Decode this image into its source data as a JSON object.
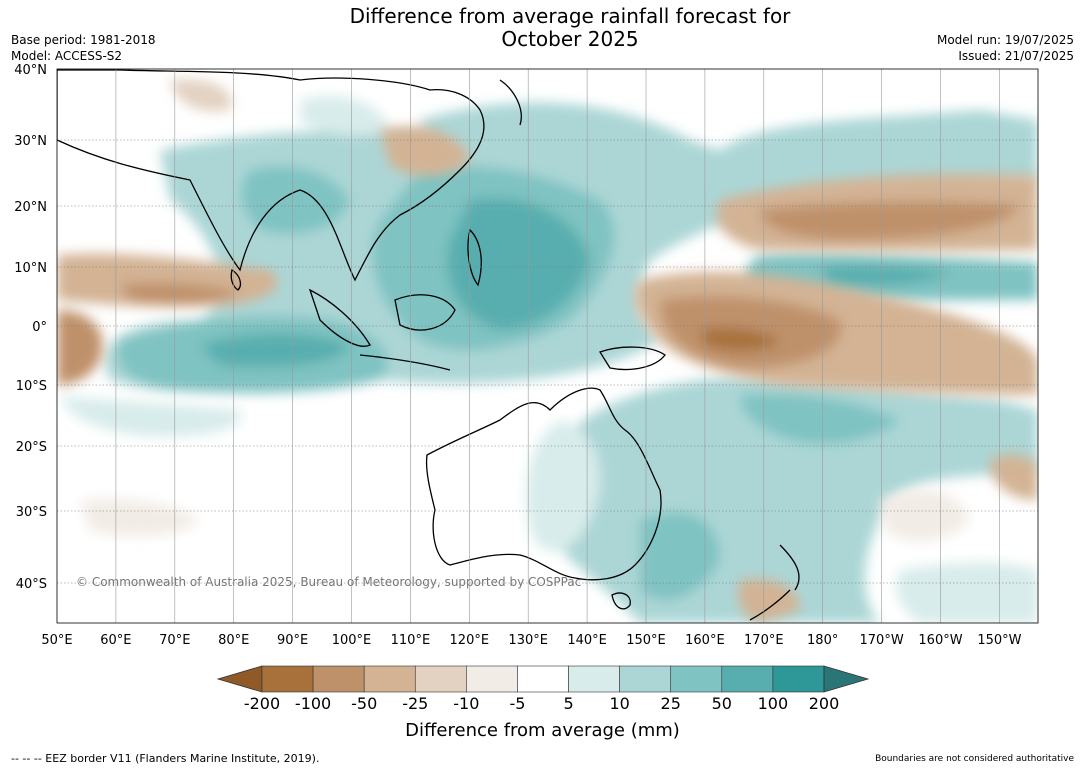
{
  "title": {
    "line1": "Difference from average rainfall forecast for",
    "line2": "October 2025"
  },
  "meta": {
    "base_period": "Base period: 1981-2018",
    "model": "Model: ACCESS-S2",
    "model_run": "Model run: 19/07/2025",
    "issued": "Issued: 21/07/2025"
  },
  "copyright": "© Commonwealth of Australia 2025, Bureau of Meteorology, supported by COSPPac",
  "longitude_labels": [
    "50°E",
    "60°E",
    "70°E",
    "80°E",
    "90°E",
    "100°E",
    "110°E",
    "120°E",
    "130°E",
    "140°E",
    "150°E",
    "160°E",
    "170°E",
    "180°",
    "170°W",
    "160°W",
    "150°W"
  ],
  "latitude_labels": [
    "40°N",
    "30°N",
    "20°N",
    "10°N",
    "0°",
    "10°S",
    "20°S",
    "30°S",
    "40°S"
  ],
  "colorbar": {
    "ticks": [
      "-200",
      "-100",
      "-50",
      "-25",
      "-10",
      "-5",
      "5",
      "10",
      "25",
      "50",
      "100",
      "200"
    ],
    "colors": [
      "#8f5a28",
      "#a8713b",
      "#bf916a",
      "#d3b394",
      "#e3d2c2",
      "#f2ece6",
      "#ffffff",
      "#d8eceb",
      "#acd6d6",
      "#7fc3c2",
      "#58aeae",
      "#2e9797",
      "#2a7676"
    ],
    "label": "Difference from average (mm)"
  },
  "footer": {
    "eez": "--  --  -- EEZ border V11 (Flanders Marine Institute, 2019).",
    "boundaries": "Boundaries are not considered authoritative"
  }
}
